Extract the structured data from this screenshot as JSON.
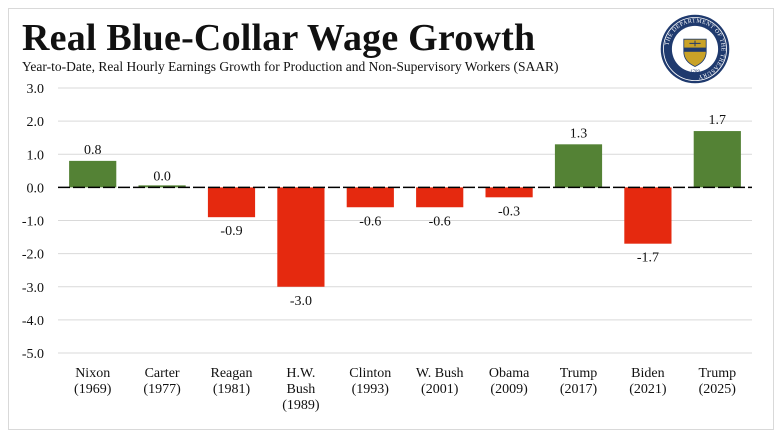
{
  "chart_data": {
    "type": "bar",
    "title": "Real Blue-Collar Wage Growth",
    "subtitle": "Year-to-Date, Real Hourly Earnings Growth for Production and Non-Supervisory Workers (SAAR)",
    "categories": [
      [
        "Nixon",
        "(1969)"
      ],
      [
        "Carter",
        "(1977)"
      ],
      [
        "Reagan",
        "(1981)"
      ],
      [
        "H.W.",
        "Bush",
        "(1989)"
      ],
      [
        "Clinton",
        "(1993)"
      ],
      [
        "W. Bush",
        "(2001)"
      ],
      [
        "Obama",
        "(2009)"
      ],
      [
        "Trump",
        "(2017)"
      ],
      [
        "Biden",
        "(2021)"
      ],
      [
        "Trump",
        "(2025)"
      ]
    ],
    "values": [
      0.8,
      0.0,
      -0.9,
      -3.0,
      -0.6,
      -0.6,
      -0.3,
      1.3,
      -1.7,
      1.7
    ],
    "data_labels": [
      "0.8",
      "0.0",
      "-0.9",
      "-3.0",
      "-0.6",
      "-0.6",
      "-0.3",
      "1.3",
      "-1.7",
      "1.7"
    ],
    "ylim": [
      -5.0,
      3.0
    ],
    "yticks": [
      "3.0",
      "2.0",
      "1.0",
      "0.0",
      "-1.0",
      "-2.0",
      "-3.0",
      "-4.0",
      "-5.0"
    ],
    "grid": true,
    "legend": "none",
    "colors": {
      "positive": "#548235",
      "negative": "#e5290f",
      "grid": "#d9d9d9",
      "zero_line": "#000000"
    }
  },
  "seal": {
    "ring_text": "THE DEPARTMENT OF THE TREASURY",
    "year": "1789",
    "colors": {
      "navy": "#1f3a6e",
      "gold": "#c9a227"
    }
  }
}
